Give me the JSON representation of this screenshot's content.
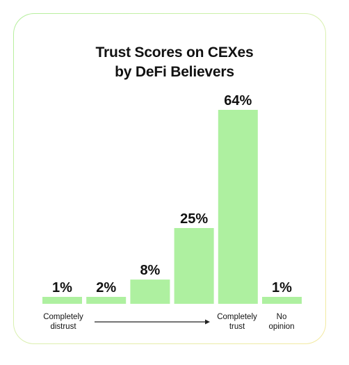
{
  "chart_data": {
    "type": "bar",
    "title": "Trust Scores on CEXes by DeFi Believers",
    "title_lines": [
      "Trust Scores on CEXes",
      "by DeFi Believers"
    ],
    "categories": [
      "Completely distrust",
      "",
      "",
      "",
      "Completely trust",
      "No opinion"
    ],
    "values": [
      1,
      2,
      8,
      25,
      64,
      1
    ],
    "value_labels": [
      "1%",
      "2%",
      "8%",
      "25%",
      "64%",
      "1%"
    ],
    "axis_labels": {
      "left": [
        "Completely",
        "distrust"
      ],
      "right": [
        "Completely",
        "trust"
      ],
      "no_opinion": [
        "No",
        "opinion"
      ]
    },
    "ylim": [
      0,
      64
    ],
    "grid": false,
    "bar_color": "#aef0a0",
    "arrow_color": "#222222"
  }
}
